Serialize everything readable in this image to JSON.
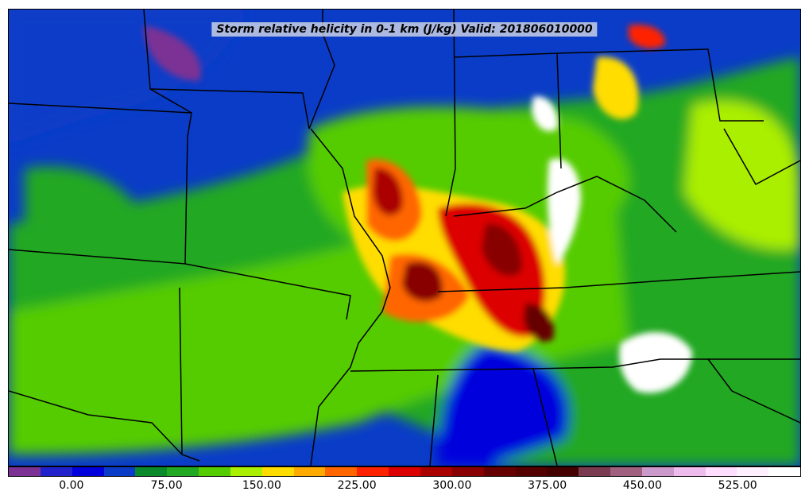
{
  "map": {
    "title": "Storm relative helicity in 0-1 km (J/kg) Valid: 201806010000",
    "variable": "Storm relative helicity",
    "units": "J/kg",
    "layer": "0-1 km",
    "valid_time": "201806010000"
  },
  "colorbar": {
    "colors": [
      "#7b3294",
      "#2222cc",
      "#0000dd",
      "#0a3cc8",
      "#0b8a2c",
      "#22a822",
      "#55cc00",
      "#aaee00",
      "#ffdd00",
      "#ffaa00",
      "#ff6600",
      "#ff2200",
      "#dd0000",
      "#aa0000",
      "#880000",
      "#660000",
      "#550000",
      "#440000",
      "#7a3b50",
      "#a06080",
      "#cc99cc",
      "#eebbee",
      "#ffddff",
      "#fff0ff",
      "#ffffff"
    ],
    "tick_labels": [
      "0.00",
      "75.00",
      "150.00",
      "225.00",
      "300.00",
      "375.00",
      "450.00",
      "525.00"
    ],
    "min": -50,
    "max": 575,
    "tick_values": [
      0,
      75,
      150,
      225,
      300,
      375,
      450,
      525
    ]
  }
}
